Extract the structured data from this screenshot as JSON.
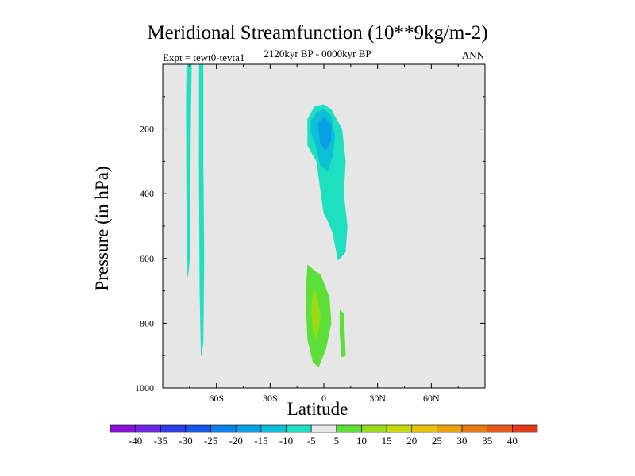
{
  "chart_data": {
    "type": "contour",
    "title": "Meridional Streamfunction (10**9kg/m-2)",
    "subtitle": "2120kyr BP - 0000kyr BP",
    "left_label": "Expt = tewt0-tevta1",
    "right_label": "ANN",
    "xlabel": "Latitude",
    "ylabel": "Pressure (in hPa)",
    "xlim": [
      -90,
      90
    ],
    "ylim": [
      1000,
      0
    ],
    "x_ticks": [
      {
        "value": -60,
        "label": "60S"
      },
      {
        "value": -30,
        "label": "30S"
      },
      {
        "value": 0,
        "label": "0"
      },
      {
        "value": 30,
        "label": "30N"
      },
      {
        "value": 60,
        "label": "60N"
      }
    ],
    "y_ticks": [
      {
        "value": 200,
        "label": "200"
      },
      {
        "value": 400,
        "label": "400"
      },
      {
        "value": 600,
        "label": "600"
      },
      {
        "value": 800,
        "label": "800"
      },
      {
        "value": 1000,
        "label": "1000"
      }
    ],
    "background_color": "#e6e6e6",
    "contour_regions": [
      {
        "name": "sh-strip-1",
        "level": -5,
        "color": "#1ee0c0",
        "points": [
          [
            -76.5,
            0
          ],
          [
            -74,
            0
          ],
          [
            -74.5,
            200
          ],
          [
            -75,
            600
          ],
          [
            -76,
            655
          ],
          [
            -76.6,
            400
          ],
          [
            -76.8,
            100
          ]
        ]
      },
      {
        "name": "sh-strip-2",
        "level": -5,
        "color": "#1ee0c0",
        "points": [
          [
            -69.5,
            0
          ],
          [
            -67.5,
            0
          ],
          [
            -67.5,
            300
          ],
          [
            -67,
            600
          ],
          [
            -67.5,
            860
          ],
          [
            -68.5,
            900
          ],
          [
            -69.2,
            700
          ],
          [
            -69.6,
            300
          ]
        ]
      },
      {
        "name": "tropical-neg-outer",
        "level": -5,
        "color": "#1ee0c0",
        "points": [
          [
            -9,
            170
          ],
          [
            -5,
            130
          ],
          [
            0,
            125
          ],
          [
            4,
            140
          ],
          [
            10,
            200
          ],
          [
            12,
            300
          ],
          [
            11,
            400
          ],
          [
            13,
            500
          ],
          [
            12,
            580
          ],
          [
            8,
            605
          ],
          [
            5,
            520
          ],
          [
            2,
            480
          ],
          [
            0,
            460
          ],
          [
            -2,
            380
          ],
          [
            -4,
            300
          ],
          [
            -9,
            250
          ]
        ]
      },
      {
        "name": "tropical-neg-mid",
        "level": -10,
        "color": "#0ebfd8",
        "points": [
          [
            -7,
            175
          ],
          [
            -4,
            148
          ],
          [
            0,
            140
          ],
          [
            4,
            160
          ],
          [
            6,
            220
          ],
          [
            5,
            280
          ],
          [
            2,
            330
          ],
          [
            -2,
            310
          ],
          [
            -4,
            260
          ],
          [
            -7,
            210
          ]
        ]
      },
      {
        "name": "tropical-neg-core",
        "level": -15,
        "color": "#0aa0e6",
        "points": [
          [
            -3,
            185
          ],
          [
            0,
            165
          ],
          [
            4,
            185
          ],
          [
            4,
            235
          ],
          [
            1,
            265
          ],
          [
            -2,
            245
          ]
        ]
      },
      {
        "name": "tropical-pos-outer",
        "level": 5,
        "color": "#5ce039",
        "points": [
          [
            -9,
            620
          ],
          [
            -5,
            640
          ],
          [
            -2,
            650
          ],
          [
            3,
            720
          ],
          [
            4,
            800
          ],
          [
            1,
            880
          ],
          [
            -3,
            935
          ],
          [
            -6,
            920
          ],
          [
            -9,
            850
          ],
          [
            -10,
            720
          ]
        ]
      },
      {
        "name": "tropical-pos-core",
        "level": 10,
        "color": "#9ad915",
        "points": [
          [
            -6,
            700
          ],
          [
            -4,
            710
          ],
          [
            -2,
            780
          ],
          [
            -4,
            850
          ],
          [
            -6,
            820
          ],
          [
            -7,
            760
          ]
        ]
      },
      {
        "name": "nh-pos-blob",
        "level": 5,
        "color": "#5ce039",
        "points": [
          [
            9,
            760
          ],
          [
            11,
            770
          ],
          [
            12,
            900
          ],
          [
            10,
            905
          ],
          [
            9,
            830
          ]
        ]
      }
    ],
    "colorbar": {
      "labels": [
        "-40",
        "-35",
        "-30",
        "-25",
        "-20",
        "-15",
        "-10",
        "-5",
        "5",
        "10",
        "15",
        "20",
        "25",
        "30",
        "35",
        "40"
      ],
      "colors": [
        "#8a12d8",
        "#6e26e6",
        "#2e3ce6",
        "#1a56e8",
        "#0c82e8",
        "#0aa0e6",
        "#0ebfd8",
        "#1ee0c0",
        "#e8e8e8",
        "#5ce039",
        "#9ad915",
        "#c6d80c",
        "#e6c20a",
        "#e6a10c",
        "#e67a14",
        "#e65a1a",
        "#e03a1a"
      ]
    }
  }
}
